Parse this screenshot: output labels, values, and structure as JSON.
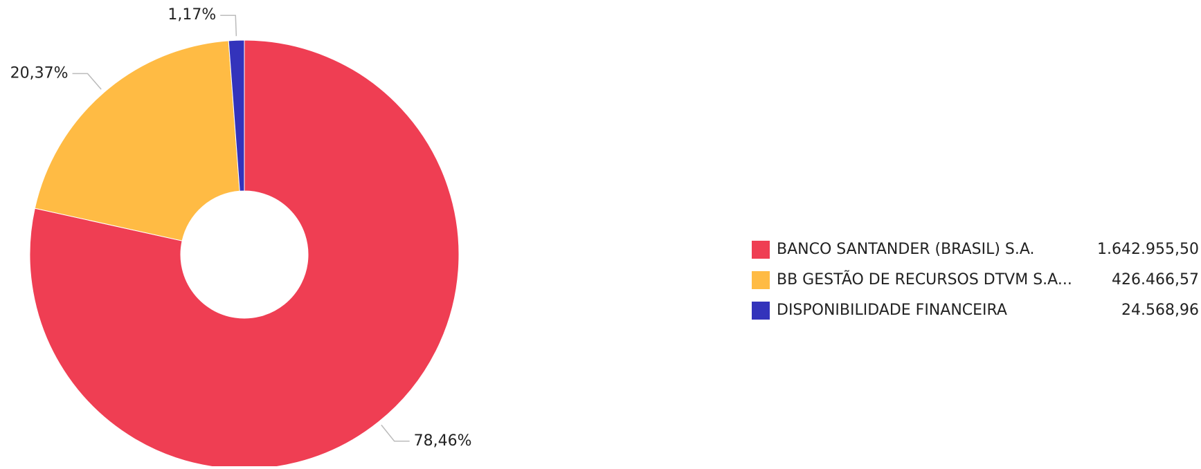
{
  "chart_data": {
    "type": "pie",
    "variant": "donut",
    "legend_position": "right",
    "colors": [
      "#ef3e53",
      "#ffbb44",
      "#3333bb"
    ],
    "slices": [
      {
        "name": "BANCO SANTANDER (BRASIL) S.A.",
        "value": 1642955.5,
        "value_label": "1.642.955,50",
        "percent": 78.46,
        "percent_label": "78,46%"
      },
      {
        "name": "BB GESTÃO DE RECURSOS DTVM S.A...",
        "value": 426466.57,
        "value_label": "426.466,57",
        "percent": 20.37,
        "percent_label": "20,37%"
      },
      {
        "name": "DISPONIBILIDADE FINANCEIRA",
        "value": 24568.96,
        "value_label": "24.568,96",
        "percent": 1.17,
        "percent_label": "1,17%"
      }
    ]
  }
}
